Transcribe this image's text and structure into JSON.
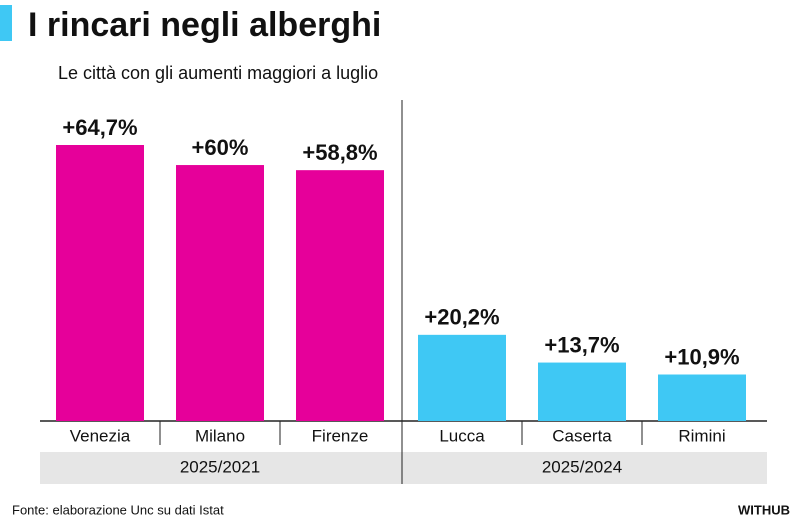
{
  "chart_data": {
    "type": "bar",
    "title": "I rincari negli alberghi",
    "subtitle": "Le città con gli aumenti maggiori a luglio",
    "series": [
      {
        "name": "2025/2021",
        "color": "#e6009a",
        "categories": [
          "Venezia",
          "Milano",
          "Firenze"
        ],
        "values": [
          64.7,
          60,
          58.8
        ],
        "value_labels": [
          "+64,7%",
          "+60%",
          "+58,8%"
        ]
      },
      {
        "name": "2025/2024",
        "color": "#3fc8f4",
        "categories": [
          "Lucca",
          "Caserta",
          "Rimini"
        ],
        "values": [
          20.2,
          13.7,
          10.9
        ],
        "value_labels": [
          "+20,2%",
          "+13,7%",
          "+10,9%"
        ]
      }
    ],
    "source": "Fonte: elaborazione Unc su dati Istat",
    "brand": "WITHUB"
  }
}
